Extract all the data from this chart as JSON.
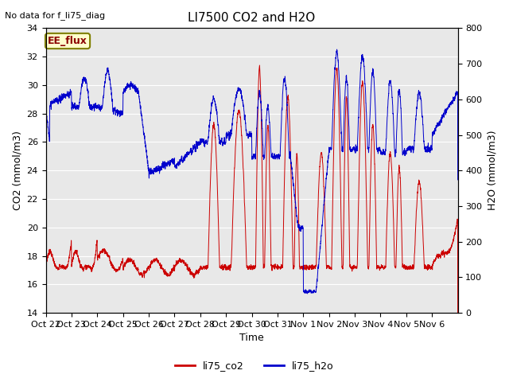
{
  "title": "LI7500 CO2 and H2O",
  "top_left_text": "No data for f_li75_diag",
  "xlabel": "Time",
  "ylabel_left": "CO2 (mmol/m3)",
  "ylabel_right": "H2O (mmol/m3)",
  "ylim_left": [
    14,
    34
  ],
  "ylim_right": [
    0,
    800
  ],
  "yticks_left": [
    14,
    16,
    18,
    20,
    22,
    24,
    26,
    28,
    30,
    32,
    34
  ],
  "yticks_right": [
    0,
    100,
    200,
    300,
    400,
    500,
    600,
    700,
    800
  ],
  "xtick_labels": [
    "Oct 22",
    "Oct 23",
    "Oct 24",
    "Oct 25",
    "Oct 26",
    "Oct 27",
    "Oct 28",
    "Oct 29",
    "Oct 30",
    "Oct 31",
    "Nov 1",
    "Nov 2",
    "Nov 3",
    "Nov 4",
    "Nov 5",
    "Nov 6"
  ],
  "legend_label_co2": "li75_co2",
  "legend_label_h2o": "li75_h2o",
  "color_co2": "#cc0000",
  "color_h2o": "#0000cc",
  "annotation_text": "EE_flux",
  "bg_color": "#e8e8e8",
  "grid_color": "#ffffff",
  "title_fontsize": 11,
  "label_fontsize": 9,
  "tick_fontsize": 8,
  "figsize": [
    6.4,
    4.8
  ],
  "dpi": 100
}
